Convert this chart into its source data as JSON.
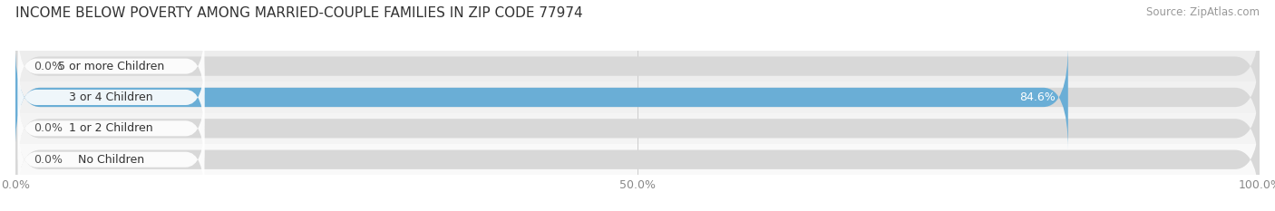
{
  "title": "INCOME BELOW POVERTY AMONG MARRIED-COUPLE FAMILIES IN ZIP CODE 77974",
  "source": "Source: ZipAtlas.com",
  "categories": [
    "No Children",
    "1 or 2 Children",
    "3 or 4 Children",
    "5 or more Children"
  ],
  "values": [
    0.0,
    0.0,
    84.6,
    0.0
  ],
  "bar_colors": [
    "#f5c08a",
    "#f0a0a0",
    "#6aaed6",
    "#c8a8d8"
  ],
  "label_colors": [
    "#555555",
    "#555555",
    "#ffffff",
    "#555555"
  ],
  "row_bg_colors": [
    "#f5f5f5",
    "#eeeeee",
    "#e8e8e8",
    "#e2e2e2"
  ],
  "xlim": [
    0,
    100
  ],
  "xticks": [
    0.0,
    50.0,
    100.0
  ],
  "xtick_labels": [
    "0.0%",
    "50.0%",
    "100.0%"
  ],
  "title_fontsize": 11,
  "source_fontsize": 8.5,
  "label_fontsize": 9,
  "bar_label_fontsize": 9,
  "tick_fontsize": 9,
  "background_color": "#ffffff",
  "bar_bg_color": "#d8d8d8",
  "pill_color": "#ffffff",
  "grid_color": "#cccccc"
}
